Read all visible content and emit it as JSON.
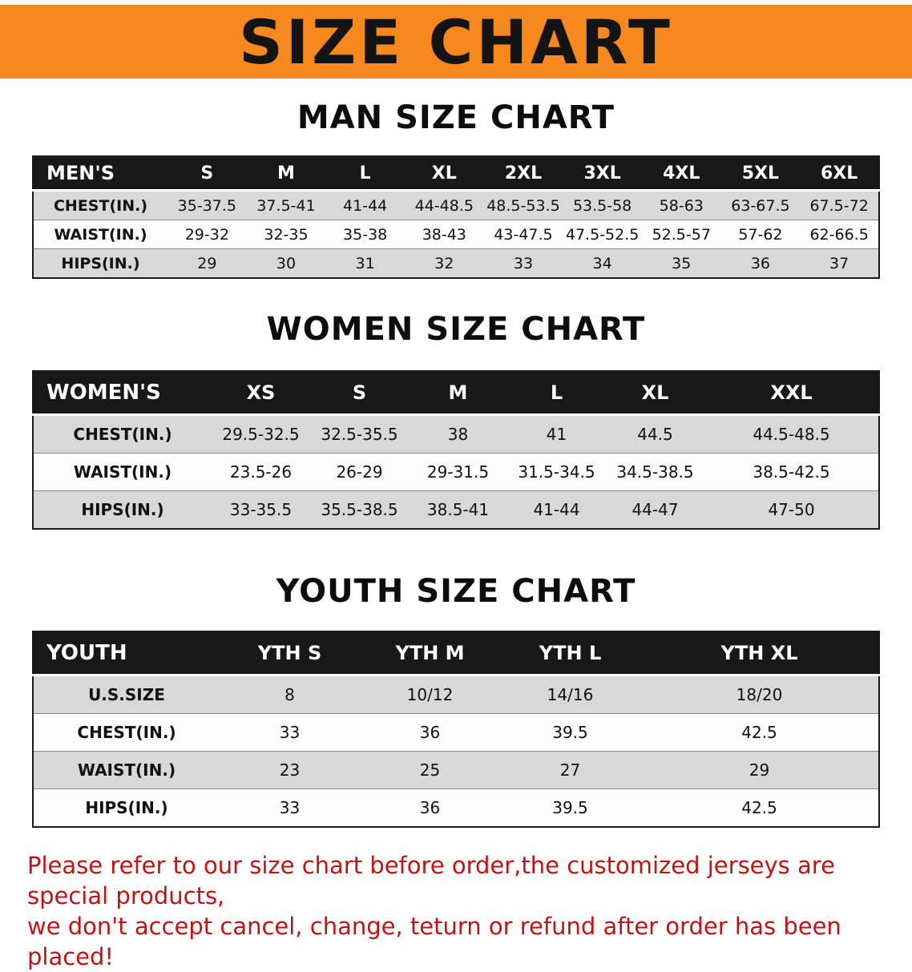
{
  "banner": {
    "title": "SIZE CHART",
    "background_color": "#F6891E",
    "text_color": "#141414"
  },
  "sections": {
    "men": {
      "heading": "MAN SIZE CHART"
    },
    "women": {
      "heading": "WOMEN SIZE CHART"
    },
    "youth": {
      "heading": "YOUTH SIZE CHART"
    }
  },
  "tables": {
    "men": {
      "label": "MEN'S",
      "columns": [
        "S",
        "M",
        "L",
        "XL",
        "2XL",
        "3XL",
        "4XL",
        "5XL",
        "6XL"
      ],
      "rows": [
        {
          "label": "CHEST(IN.)",
          "values": [
            "35-37.5",
            "37.5-41",
            "41-44",
            "44-48.5",
            "48.5-53.5",
            "53.5-58",
            "58-63",
            "63-67.5",
            "67.5-72"
          ]
        },
        {
          "label": "WAIST(IN.)",
          "values": [
            "29-32",
            "32-35",
            "35-38",
            "38-43",
            "43-47.5",
            "47.5-52.5",
            "52.5-57",
            "57-62",
            "62-66.5"
          ]
        },
        {
          "label": "HIPS(IN.)",
          "values": [
            "29",
            "30",
            "31",
            "32",
            "33",
            "34",
            "35",
            "36",
            "37"
          ]
        }
      ]
    },
    "women": {
      "label": "WOMEN'S",
      "columns": [
        "XS",
        "S",
        "M",
        "L",
        "XL",
        "XXL"
      ],
      "rows": [
        {
          "label": "CHEST(IN.)",
          "values": [
            "29.5-32.5",
            "32.5-35.5",
            "38",
            "41",
            "44.5",
            "44.5-48.5"
          ]
        },
        {
          "label": "WAIST(IN.)",
          "values": [
            "23.5-26",
            "26-29",
            "29-31.5",
            "31.5-34.5",
            "34.5-38.5",
            "38.5-42.5"
          ]
        },
        {
          "label": "HIPS(IN.)",
          "values": [
            "33-35.5",
            "35.5-38.5",
            "38.5-41",
            "41-44",
            "44-47",
            "47-50"
          ]
        }
      ]
    },
    "youth": {
      "label": "YOUTH",
      "columns": [
        "YTH S",
        "YTH M",
        "YTH L",
        "YTH XL"
      ],
      "rows": [
        {
          "label": "U.S.SIZE",
          "values": [
            "8",
            "10/12",
            "14/16",
            "18/20"
          ]
        },
        {
          "label": "CHEST(IN.)",
          "values": [
            "33",
            "36",
            "39.5",
            "42.5"
          ]
        },
        {
          "label": "WAIST(IN.)",
          "values": [
            "23",
            "25",
            "27",
            "29"
          ]
        },
        {
          "label": "HIPS(IN.)",
          "values": [
            "33",
            "36",
            "39.5",
            "42.5"
          ]
        }
      ]
    }
  },
  "footer": {
    "text_color": "#C41212",
    "line1": "Please refer to our size chart before order,the customized jerseys are special products,",
    "line2": "we don't accept cancel, change, teturn or refund after order has been placed!"
  }
}
